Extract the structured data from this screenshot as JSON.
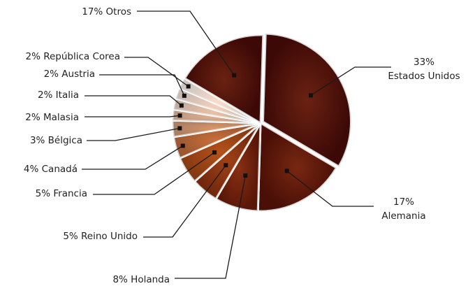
{
  "chart_data": {
    "type": "pie",
    "slices": [
      {
        "label": "Estados Unidos",
        "pct_text": "33%",
        "value": 33,
        "color": "#4a0b08",
        "label_lines": [
          "33%",
          "Estados Unidos"
        ],
        "label_side": "right"
      },
      {
        "label": "Alemania",
        "pct_text": "17%",
        "value": 17,
        "color": "#5a1208",
        "label_lines": [
          "17%",
          "Alemania"
        ],
        "label_side": "right"
      },
      {
        "label": "Holanda",
        "pct_text": "8%",
        "value": 8,
        "color": "#6e1c0a",
        "label_lines": [
          "8% Holanda"
        ],
        "label_side": "left"
      },
      {
        "label": "Reino Unido",
        "pct_text": "5%",
        "value": 5,
        "color": "#8a300f",
        "label_lines": [
          "5% Reino Unido"
        ],
        "label_side": "left"
      },
      {
        "label": "Francia",
        "pct_text": "5%",
        "value": 5,
        "color": "#a34514",
        "label_lines": [
          "5% Francia"
        ],
        "label_side": "left"
      },
      {
        "label": "Canadá",
        "pct_text": "4%",
        "value": 4,
        "color": "#bd6a3a",
        "label_lines": [
          "4% Canadá"
        ],
        "label_side": "left"
      },
      {
        "label": "Bélgica",
        "pct_text": "3%",
        "value": 3,
        "color": "#d39a76",
        "label_lines": [
          "3% Bélgica"
        ],
        "label_side": "left"
      },
      {
        "label": "Malasia",
        "pct_text": "2%",
        "value": 2,
        "color": "#e2b9a0",
        "label_lines": [
          "2% Malasia"
        ],
        "label_side": "left"
      },
      {
        "label": "Italia",
        "pct_text": "2%",
        "value": 2,
        "color": "#ecd0c0",
        "label_lines": [
          "2% Italia"
        ],
        "label_side": "left"
      },
      {
        "label": "Austria",
        "pct_text": "2%",
        "value": 2,
        "color": "#f4e2d8",
        "label_lines": [
          "2% Austria"
        ],
        "label_side": "left"
      },
      {
        "label": "República Corea",
        "pct_text": "2%",
        "value": 2,
        "color": "#faf0ea",
        "label_lines": [
          "2% República Corea"
        ],
        "label_side": "left"
      },
      {
        "label": "Otros",
        "pct_text": "17%",
        "value": 17,
        "color": "#4a0b08",
        "label_lines": [
          "17% Otros"
        ],
        "label_side": "left"
      }
    ]
  }
}
